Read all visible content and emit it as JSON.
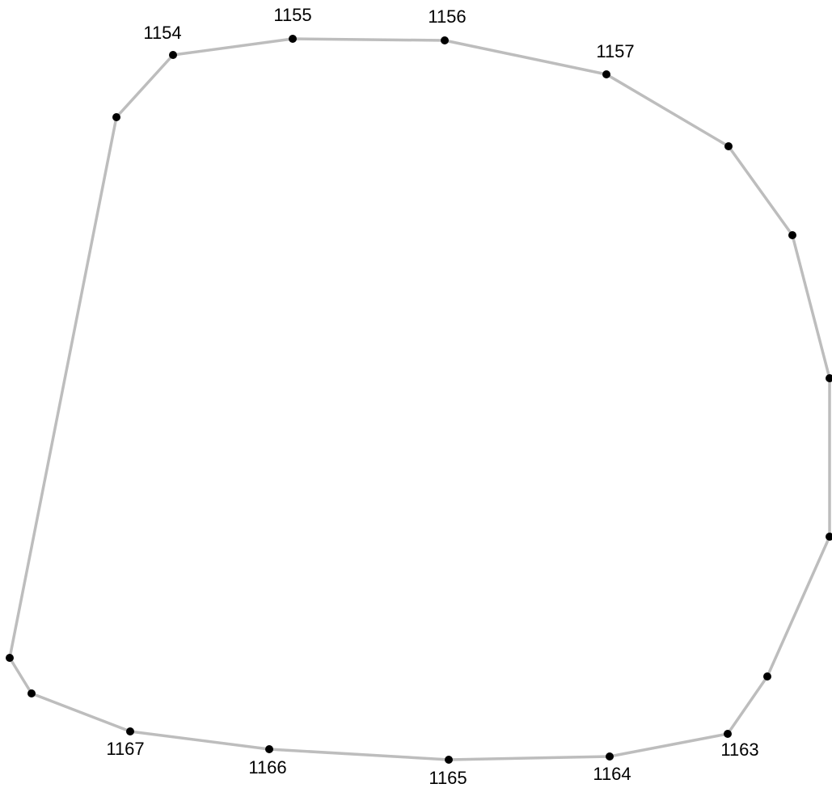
{
  "diagram": {
    "colors": {
      "edge": "#bdbdbd",
      "node": "#000000",
      "label": "#000000",
      "background": "#ffffff"
    },
    "nodes": [
      {
        "id": "n1153",
        "label": ""
      },
      {
        "id": "n1154",
        "label": "1154"
      },
      {
        "id": "n1155",
        "label": "1155"
      },
      {
        "id": "n1156",
        "label": "1156"
      },
      {
        "id": "n1157",
        "label": "1157"
      },
      {
        "id": "n1158",
        "label": ""
      },
      {
        "id": "n1159",
        "label": ""
      },
      {
        "id": "n1160",
        "label": ""
      },
      {
        "id": "n1161",
        "label": ""
      },
      {
        "id": "n1162",
        "label": ""
      },
      {
        "id": "n1163",
        "label": "1163"
      },
      {
        "id": "n1164",
        "label": "1164"
      },
      {
        "id": "n1165",
        "label": "1165"
      },
      {
        "id": "n1166",
        "label": "1166"
      },
      {
        "id": "n1167",
        "label": "1167"
      },
      {
        "id": "n1168",
        "label": ""
      },
      {
        "id": "n1169",
        "label": ""
      }
    ],
    "closed_loop": true
  }
}
